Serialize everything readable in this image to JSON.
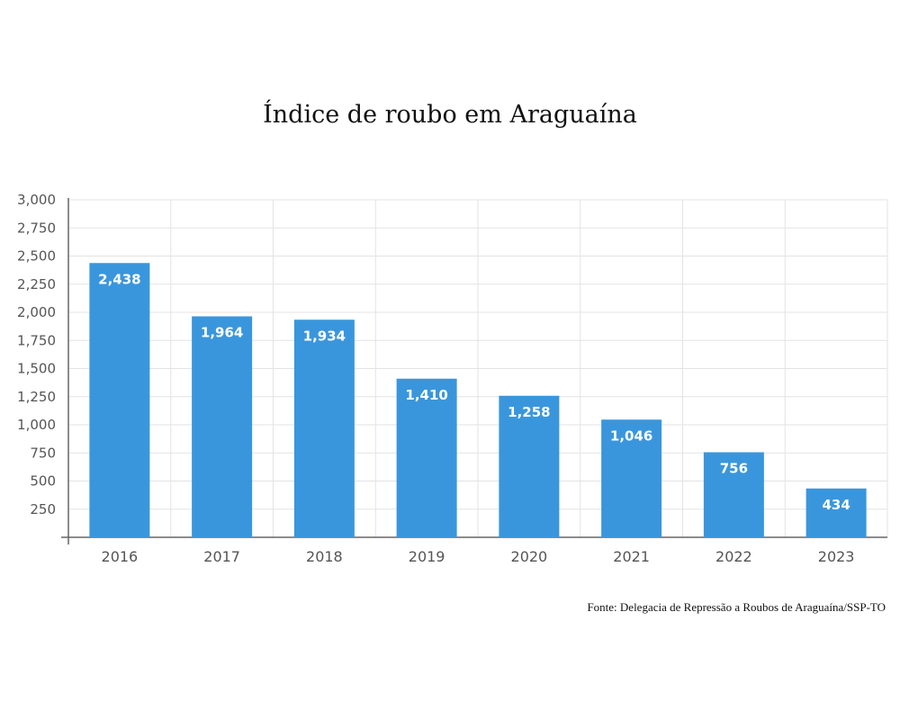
{
  "chart_data": {
    "type": "bar",
    "title": "Índice de roubo em Araguaína",
    "categories": [
      "2016",
      "2017",
      "2018",
      "2019",
      "2020",
      "2021",
      "2022",
      "2023"
    ],
    "values": [
      2438,
      1964,
      1934,
      1410,
      1258,
      1046,
      756,
      434
    ],
    "value_labels": [
      "2,438",
      "1,964",
      "1,934",
      "1,410",
      "1,258",
      "1,046",
      "756",
      "434"
    ],
    "yticks": [
      250,
      500,
      750,
      1000,
      1250,
      1500,
      1750,
      2000,
      2250,
      2500,
      2750,
      3000
    ],
    "ytick_labels": [
      "250",
      "500",
      "750",
      "1,000",
      "1,250",
      "1,500",
      "1,750",
      "2,000",
      "2,250",
      "2,500",
      "2,750",
      "3,000"
    ],
    "ylim": [
      0,
      3000
    ],
    "xlabel": "",
    "ylabel": "",
    "grid": true,
    "bar_color": "#3a96dc",
    "source": "Fonte: Delegacia de Repressão a Roubos de Araguaína/SSP-TO"
  }
}
